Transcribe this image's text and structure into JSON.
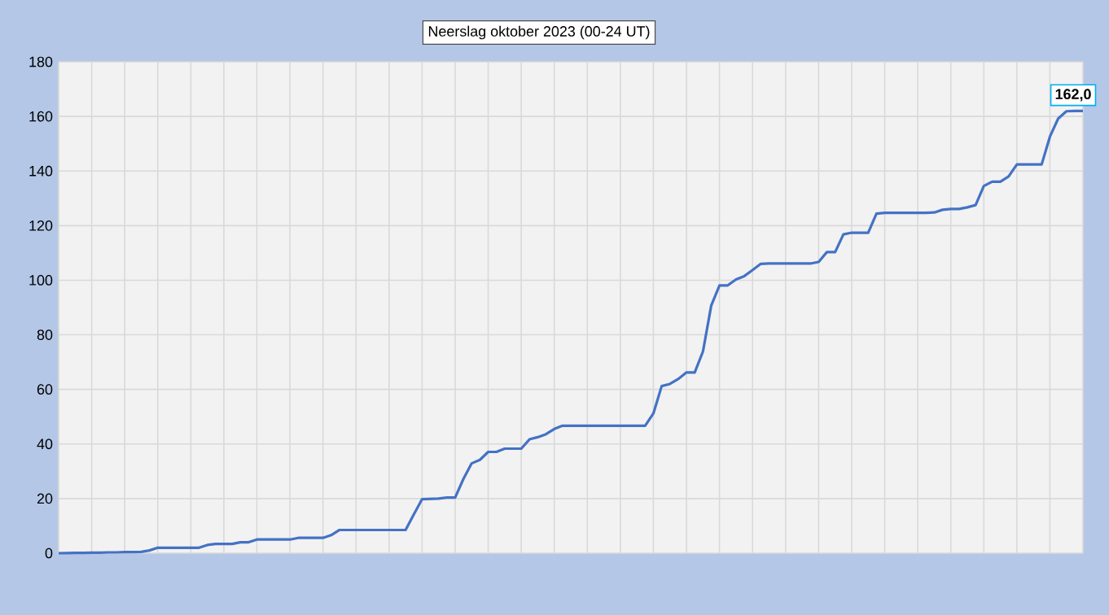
{
  "chart_data": {
    "type": "line",
    "title": "Neerslag oktober 2023 (00-24 UT)",
    "categories": [
      null,
      null,
      null,
      null,
      null,
      null,
      null,
      null,
      null,
      null,
      null,
      null,
      null,
      null,
      null,
      null,
      null,
      null,
      null,
      null,
      null,
      null,
      null,
      null,
      null,
      null,
      null,
      null,
      null,
      null,
      null,
      null,
      null,
      null,
      null,
      null,
      null,
      null,
      null,
      null,
      null,
      null,
      null,
      null,
      null,
      null,
      null,
      null,
      null,
      null,
      null,
      null,
      null,
      null,
      null,
      null,
      null,
      null,
      null,
      null,
      null,
      null,
      null,
      null,
      null,
      null,
      null,
      null,
      null,
      null,
      null,
      null,
      null,
      null,
      null,
      null,
      null,
      null,
      null,
      null,
      null,
      null,
      null,
      null,
      null,
      null,
      null,
      null,
      null,
      null,
      null,
      null,
      null,
      null,
      null,
      null,
      null,
      null,
      null,
      null,
      null,
      null,
      null,
      null,
      null,
      null,
      null,
      null,
      null,
      null,
      null,
      null,
      null,
      null,
      null,
      null,
      null,
      null,
      null,
      null,
      null,
      null,
      null,
      null,
      null
    ],
    "values": [
      0,
      0.05,
      0.1,
      0.1,
      0.2,
      0.2,
      0.3,
      0.3,
      0.4,
      0.4,
      0.5,
      1.0,
      2.0,
      2,
      2,
      2,
      2,
      2,
      3.0,
      3.4,
      3.4,
      3.4,
      4,
      4,
      5,
      5,
      5,
      5,
      5,
      5.6,
      5.6,
      5.6,
      5.6,
      6.6,
      8.5,
      8.5,
      8.5,
      8.5,
      8.5,
      8.5,
      8.5,
      8.5,
      8.5,
      14.2,
      19.8,
      19.9,
      20.0,
      20.4,
      20.4,
      27.2,
      32.9,
      34.2,
      37.1,
      37.1,
      38.3,
      38.3,
      38.3,
      41.7,
      42.5,
      43.6,
      45.5,
      46.7,
      46.7,
      46.7,
      46.7,
      46.7,
      46.7,
      46.7,
      46.7,
      46.7,
      46.7,
      46.7,
      51.2,
      61.2,
      62,
      63.8,
      66.2,
      66.2,
      73.9,
      90.7,
      98.1,
      98.1,
      100.3,
      101.5,
      103.7,
      106.0,
      106.1,
      106.1,
      106.1,
      106.1,
      106.1,
      106.1,
      106.7,
      110.3,
      110.3,
      116.8,
      117.4,
      117.4,
      117.4,
      124.4,
      124.7,
      124.7,
      124.7,
      124.7,
      124.7,
      124.7,
      124.8,
      125.8,
      126.1,
      126.1,
      126.7,
      127.5,
      134.5,
      136.1,
      136.1,
      138.0,
      142.4,
      142.4,
      142.4,
      142.4,
      152.6,
      159.2,
      161.9,
      162,
      162
    ],
    "color": "#4472c4",
    "marker": "none",
    "line_style": "solid",
    "grid": true,
    "tick_labels": "y",
    "ylim": [
      0,
      180
    ],
    "yticks": [
      0,
      20,
      40,
      60,
      80,
      100,
      120,
      140,
      160,
      180
    ],
    "annotations": [
      {
        "text": "162,0",
        "y": 162
      }
    ]
  }
}
